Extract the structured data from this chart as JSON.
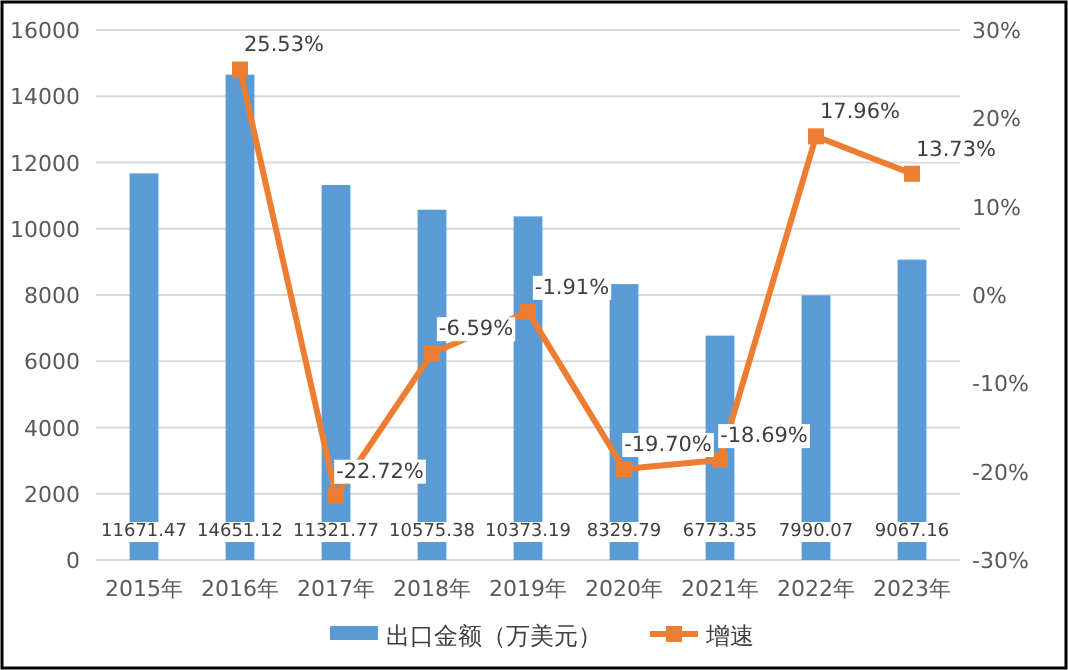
{
  "chart_data": {
    "type": "bar",
    "categories": [
      "2015年",
      "2016年",
      "2017年",
      "2018年",
      "2019年",
      "2020年",
      "2021年",
      "2022年",
      "2023年"
    ],
    "series": [
      {
        "name": "出口金额（万美元）",
        "color": "#5b9bd5",
        "values": [
          11671.47,
          14651.12,
          11321.77,
          10575.38,
          10373.19,
          8329.79,
          6773.35,
          7990.07,
          9067.16
        ],
        "value_labels": [
          "11671.47",
          "14651.12",
          "11321.77",
          "10575.38",
          "10373.19",
          "8329.79",
          "6773.35",
          "7990.07",
          "9067.16"
        ]
      },
      {
        "name": "增速",
        "type": "line",
        "axis": "y2",
        "color": "#ed7d31",
        "values": [
          null,
          25.53,
          -22.72,
          -6.59,
          -1.91,
          -19.7,
          -18.69,
          17.96,
          13.73
        ],
        "value_labels": [
          null,
          "25.53%",
          "-22.72%",
          "-6.59%",
          "-1.91%",
          "-19.70%",
          "-18.69%",
          "17.96%",
          "13.73%"
        ]
      }
    ],
    "ylim": [
      0,
      16000
    ],
    "yticks": [
      0,
      2000,
      4000,
      6000,
      8000,
      10000,
      12000,
      14000,
      16000
    ],
    "y2lim": [
      -30,
      30
    ],
    "y2ticks": [
      {
        "value": -30,
        "label": "-30%"
      },
      {
        "value": -20,
        "label": "-20%"
      },
      {
        "value": -10,
        "label": "-10%"
      },
      {
        "value": 0,
        "label": "0%"
      },
      {
        "value": 10,
        "label": "10%"
      },
      {
        "value": 20,
        "label": "20%"
      },
      {
        "value": 30,
        "label": "30%"
      }
    ],
    "grid": "y",
    "legend": "bottom",
    "marker": "square",
    "line_style": "solid"
  }
}
